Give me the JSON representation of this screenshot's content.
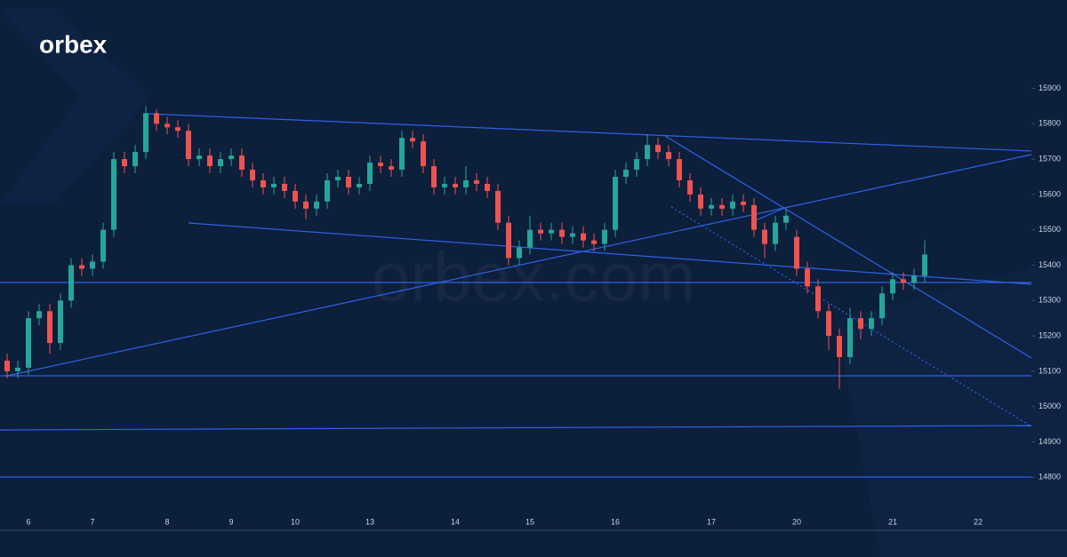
{
  "logo": "orbex",
  "watermark": "orbex.com",
  "chart_data": {
    "type": "candlestick",
    "categories": [
      null,
      null,
      "6",
      null,
      null,
      null,
      null,
      null,
      "7",
      null,
      null,
      null,
      null,
      null,
      null,
      "8",
      null,
      null,
      null,
      null,
      null,
      "9",
      null,
      null,
      null,
      null,
      null,
      "10",
      null,
      null,
      null,
      null,
      null,
      null,
      "13",
      null,
      null,
      null,
      null,
      null,
      null,
      null,
      "14",
      null,
      null,
      null,
      null,
      null,
      null,
      "15",
      null,
      null,
      null,
      null,
      null,
      null,
      null,
      "16",
      null,
      null,
      null,
      null,
      null,
      null,
      null,
      null,
      "17",
      null,
      null,
      null,
      null,
      null,
      null,
      null,
      "20",
      null,
      null,
      null,
      null,
      null,
      null,
      null,
      null,
      "21",
      null,
      null,
      null,
      null,
      null,
      null,
      null,
      "22",
      null
    ],
    "open": [
      15130,
      15100,
      15110,
      15250,
      15270,
      15180,
      15300,
      15400,
      15390,
      15410,
      15500,
      15700,
      15680,
      15720,
      15830,
      15800,
      15790,
      15780,
      15700,
      15710,
      15680,
      15700,
      15710,
      15670,
      15640,
      15620,
      15630,
      15610,
      15580,
      15560,
      15580,
      15640,
      15650,
      15620,
      15630,
      15690,
      15680,
      15670,
      15760,
      15750,
      15680,
      15620,
      15630,
      15620,
      15640,
      15630,
      15610,
      15520,
      15420,
      15450,
      15500,
      15490,
      15500,
      15480,
      15490,
      15470,
      15460,
      15500,
      15650,
      15670,
      15700,
      15740,
      15720,
      15700,
      15640,
      15600,
      15560,
      15570,
      15560,
      15580,
      15570,
      15500,
      15460,
      15520,
      15480,
      15390,
      15340,
      15270,
      15200,
      15140,
      15250,
      15220,
      15250,
      15320,
      15360,
      15350,
      15370,
      null,
      null,
      null,
      null,
      null,
      null
    ],
    "high": [
      15150,
      15130,
      15270,
      15290,
      15290,
      15320,
      15420,
      15420,
      15430,
      15520,
      15720,
      15720,
      15740,
      15850,
      15840,
      15820,
      15810,
      15800,
      15730,
      15730,
      15720,
      15730,
      15730,
      15690,
      15660,
      15650,
      15650,
      15630,
      15600,
      15600,
      15660,
      15670,
      15670,
      15650,
      15710,
      15710,
      15700,
      15780,
      15780,
      15770,
      15700,
      15650,
      15650,
      15680,
      15660,
      15650,
      15630,
      15540,
      15470,
      15540,
      15520,
      15520,
      15520,
      15510,
      15510,
      15490,
      15520,
      15670,
      15690,
      15720,
      15770,
      15760,
      15740,
      15720,
      15660,
      15620,
      15590,
      15590,
      15600,
      15600,
      15590,
      15520,
      15540,
      15560,
      15500,
      15410,
      15360,
      15290,
      15220,
      15280,
      15270,
      15270,
      15340,
      15380,
      15380,
      15390,
      15470,
      null,
      null,
      null,
      null,
      null,
      null
    ],
    "low": [
      15080,
      15080,
      15090,
      15230,
      15150,
      15160,
      15280,
      15370,
      15370,
      15390,
      15480,
      15660,
      15660,
      15700,
      15780,
      15770,
      15760,
      15680,
      15680,
      15660,
      15660,
      15680,
      15650,
      15620,
      15600,
      15600,
      15590,
      15560,
      15530,
      15540,
      15560,
      15620,
      15600,
      15600,
      15610,
      15660,
      15650,
      15650,
      15730,
      15660,
      15600,
      15600,
      15600,
      15600,
      15610,
      15590,
      15500,
      15400,
      15400,
      15430,
      15470,
      15470,
      15460,
      15460,
      15450,
      15440,
      15440,
      15480,
      15630,
      15650,
      15680,
      15700,
      15680,
      15620,
      15580,
      15540,
      15540,
      15540,
      15540,
      15550,
      15480,
      15420,
      15440,
      15500,
      15370,
      15320,
      15250,
      15160,
      15050,
      15120,
      15190,
      15200,
      15230,
      15300,
      15330,
      15330,
      15350,
      null,
      null,
      null,
      null,
      null,
      null
    ],
    "close": [
      15100,
      15110,
      15250,
      15270,
      15180,
      15300,
      15400,
      15390,
      15410,
      15500,
      15700,
      15680,
      15720,
      15830,
      15800,
      15790,
      15780,
      15700,
      15710,
      15680,
      15700,
      15710,
      15670,
      15640,
      15620,
      15630,
      15610,
      15580,
      15560,
      15580,
      15640,
      15650,
      15620,
      15630,
      15690,
      15680,
      15670,
      15760,
      15750,
      15680,
      15620,
      15630,
      15620,
      15640,
      15630,
      15610,
      15520,
      15420,
      15450,
      15500,
      15490,
      15500,
      15480,
      15490,
      15470,
      15460,
      15500,
      15650,
      15670,
      15700,
      15740,
      15720,
      15700,
      15640,
      15600,
      15560,
      15570,
      15560,
      15580,
      15570,
      15500,
      15460,
      15520,
      15540,
      15390,
      15340,
      15270,
      15200,
      15140,
      15250,
      15220,
      15250,
      15320,
      15360,
      15350,
      15370,
      15430,
      null,
      null,
      null,
      null,
      null,
      null
    ],
    "up_color": "#26a69a",
    "down_color": "#ef5350",
    "ylim": [
      14650,
      16150
    ],
    "yticks": [
      14800,
      14900,
      15000,
      15100,
      15200,
      15300,
      15400,
      15500,
      15600,
      15700,
      15800,
      15900
    ]
  }
}
